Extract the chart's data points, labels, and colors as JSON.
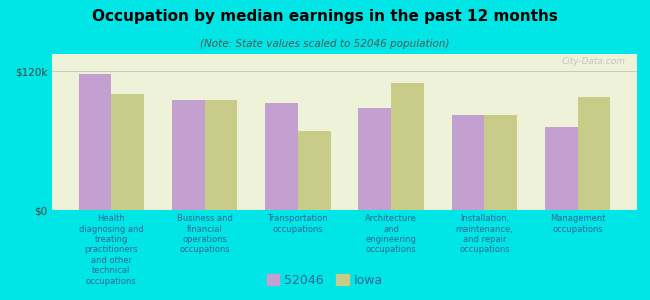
{
  "title": "Occupation by median earnings in the past 12 months",
  "subtitle": "(Note: State values scaled to 52046 population)",
  "background_color": "#00e5e5",
  "plot_bg_color": "#eef2d8",
  "categories": [
    "Health\ndiagnosing and\ntreating\npractitioners\nand other\ntechnical\noccupations",
    "Business and\nfinancial\noperations\noccupations",
    "Transportation\noccupations",
    "Architecture\nand\nengineering\noccupations",
    "Installation,\nmaintenance,\nand repair\noccupations",
    "Management\noccupations"
  ],
  "values_52046": [
    118000,
    95000,
    93000,
    88000,
    82000,
    72000
  ],
  "values_iowa": [
    100000,
    95000,
    68000,
    110000,
    82000,
    98000
  ],
  "color_52046": "#c4a0d0",
  "color_iowa": "#c8cc88",
  "legend_labels": [
    "52046",
    "Iowa"
  ],
  "ymax": 135000,
  "yticks": [
    0,
    120000
  ],
  "ytick_labels": [
    "$0",
    "$120k"
  ],
  "bar_width": 0.35,
  "watermark": "City-Data.com",
  "text_color": "#336699"
}
